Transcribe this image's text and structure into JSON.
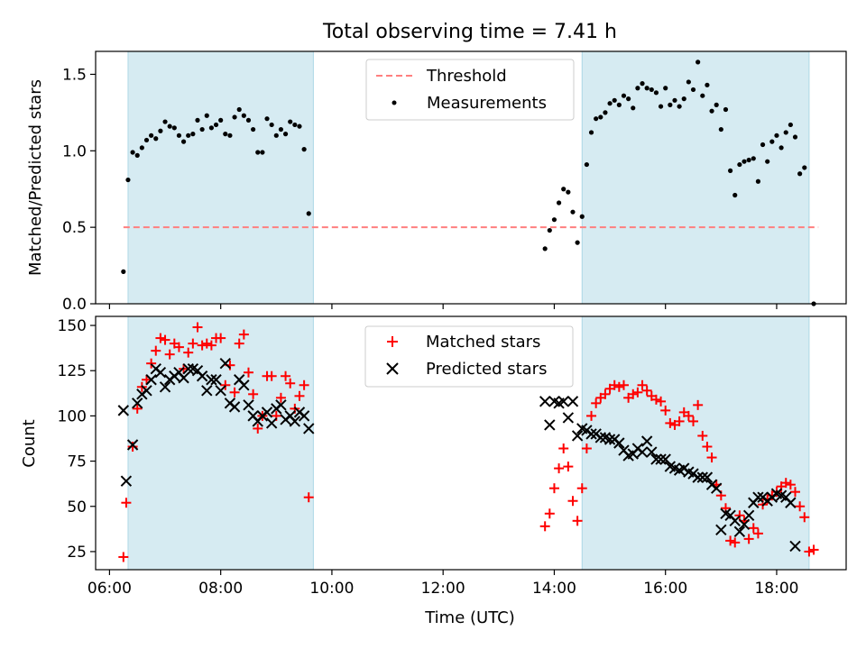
{
  "title": "Total observing time = 7.41 h",
  "colors": {
    "shade": "#add8e6",
    "threshold": "#ff7f7f",
    "measurements": "#000000",
    "matched": "#ff0000",
    "predicted": "#000000"
  },
  "chart_data": [
    {
      "type": "scatter",
      "panel": "top",
      "title": "Total observing time = 7.41 h",
      "ylabel": "Matched/Predicted stars",
      "xlabel": "",
      "xlim": [
        "05:45",
        "19:15"
      ],
      "ylim": [
        0,
        1.65
      ],
      "yticks": [
        0.0,
        0.5,
        1.0,
        1.5
      ],
      "yticklabels": [
        "0.0",
        "0.5",
        "1.0",
        "1.5"
      ],
      "shaded_intervals": [
        [
          "06:20",
          "09:40"
        ],
        [
          "14:30",
          "18:35"
        ]
      ],
      "threshold": {
        "value": 0.5,
        "x_range": [
          "06:15",
          "18:45"
        ],
        "label": "Threshold"
      },
      "legend": {
        "position": "upper center",
        "entries": [
          "Threshold",
          "Measurements"
        ]
      },
      "series": [
        {
          "name": "Measurements",
          "x": [
            "06:15",
            "06:20",
            "06:25",
            "06:30",
            "06:35",
            "06:40",
            "06:45",
            "06:50",
            "06:55",
            "07:00",
            "07:05",
            "07:10",
            "07:15",
            "07:20",
            "07:25",
            "07:30",
            "07:35",
            "07:40",
            "07:45",
            "07:50",
            "07:55",
            "08:00",
            "08:05",
            "08:10",
            "08:15",
            "08:20",
            "08:25",
            "08:30",
            "08:35",
            "08:40",
            "08:45",
            "08:50",
            "08:55",
            "09:00",
            "09:05",
            "09:10",
            "09:15",
            "09:20",
            "09:25",
            "09:30",
            "09:35",
            "09:40",
            "13:50",
            "13:55",
            "14:00",
            "14:05",
            "14:10",
            "14:15",
            "14:20",
            "14:25",
            "14:30",
            "14:35",
            "14:40",
            "14:45",
            "14:50",
            "14:55",
            "15:00",
            "15:05",
            "15:10",
            "15:15",
            "15:20",
            "15:25",
            "15:30",
            "15:35",
            "15:40",
            "15:45",
            "15:50",
            "15:55",
            "16:00",
            "16:05",
            "16:10",
            "16:15",
            "16:20",
            "16:25",
            "16:30",
            "16:35",
            "16:40",
            "16:45",
            "16:50",
            "16:55",
            "17:00",
            "17:05",
            "17:10",
            "17:15",
            "17:20",
            "17:25",
            "17:30",
            "17:35",
            "17:40",
            "17:45",
            "17:50",
            "17:55",
            "18:00",
            "18:05",
            "18:10",
            "18:15",
            "18:20",
            "18:25",
            "18:30",
            "18:35",
            "18:40"
          ],
          "y": [
            0.21,
            0.81,
            0.99,
            0.97,
            1.02,
            1.07,
            1.1,
            1.08,
            1.13,
            1.19,
            1.16,
            1.15,
            1.1,
            1.06,
            1.1,
            1.11,
            1.2,
            1.14,
            1.23,
            1.15,
            1.17,
            1.2,
            1.11,
            1.1,
            1.22,
            1.27,
            1.23,
            1.2,
            1.14,
            0.99,
            0.99,
            1.21,
            1.17,
            1.1,
            1.14,
            1.11,
            1.19,
            1.17,
            1.16,
            1.01,
            0.59,
            null,
            0.36,
            0.48,
            0.55,
            0.66,
            0.75,
            0.73,
            0.6,
            0.4,
            0.57,
            0.91,
            1.12,
            1.21,
            1.22,
            1.25,
            1.31,
            1.33,
            1.3,
            1.36,
            1.34,
            1.28,
            1.41,
            1.44,
            1.41,
            1.4,
            1.38,
            1.29,
            1.41,
            1.3,
            1.33,
            1.29,
            1.34,
            1.45,
            1.4,
            1.58,
            1.36,
            1.43,
            1.26,
            1.3,
            1.14,
            1.27,
            0.87,
            0.71,
            0.91,
            0.93,
            0.94,
            0.95,
            0.8,
            1.04,
            0.93,
            1.06,
            1.1,
            1.02,
            1.12,
            1.17,
            1.09,
            0.85,
            0.89,
            null,
            0.0
          ]
        }
      ]
    },
    {
      "type": "scatter",
      "panel": "bottom",
      "ylabel": "Count",
      "xlabel": "Time (UTC)",
      "xlim": [
        "05:45",
        "19:15"
      ],
      "xticks": [
        "06:00",
        "08:00",
        "10:00",
        "12:00",
        "14:00",
        "16:00",
        "18:00"
      ],
      "ylim": [
        15,
        155
      ],
      "yticks": [
        25,
        50,
        75,
        100,
        125,
        150
      ],
      "shaded_intervals": [
        [
          "06:20",
          "09:40"
        ],
        [
          "14:30",
          "18:35"
        ]
      ],
      "legend": {
        "position": "upper center",
        "entries": [
          "Matched stars",
          "Predicted stars"
        ]
      },
      "series": [
        {
          "name": "Matched stars",
          "marker": "+",
          "x": [
            "06:15",
            "06:18",
            "06:25",
            "06:30",
            "06:35",
            "06:40",
            "06:45",
            "06:50",
            "06:55",
            "07:00",
            "07:05",
            "07:10",
            "07:15",
            "07:20",
            "07:25",
            "07:30",
            "07:35",
            "07:40",
            "07:45",
            "07:50",
            "07:55",
            "08:00",
            "08:05",
            "08:10",
            "08:15",
            "08:20",
            "08:25",
            "08:30",
            "08:35",
            "08:40",
            "08:45",
            "08:50",
            "08:55",
            "09:00",
            "09:05",
            "09:10",
            "09:15",
            "09:20",
            "09:25",
            "09:30",
            "09:35",
            "09:40",
            "13:50",
            "13:55",
            "14:00",
            "14:05",
            "14:10",
            "14:15",
            "14:20",
            "14:25",
            "14:30",
            "14:35",
            "14:40",
            "14:45",
            "14:50",
            "14:55",
            "15:00",
            "15:05",
            "15:10",
            "15:15",
            "15:20",
            "15:25",
            "15:30",
            "15:35",
            "15:40",
            "15:45",
            "15:50",
            "15:55",
            "16:00",
            "16:05",
            "16:10",
            "16:15",
            "16:20",
            "16:25",
            "16:30",
            "16:35",
            "16:40",
            "16:45",
            "16:50",
            "16:55",
            "17:00",
            "17:05",
            "17:10",
            "17:15",
            "17:20",
            "17:25",
            "17:30",
            "17:35",
            "17:40",
            "17:45",
            "17:50",
            "17:55",
            "18:00",
            "18:05",
            "18:10",
            "18:15",
            "18:20",
            "18:25",
            "18:30",
            "18:35",
            "18:40"
          ],
          "y": [
            22,
            52,
            83,
            104,
            116,
            120,
            129,
            136,
            143,
            142,
            134,
            140,
            138,
            126,
            135,
            140,
            149,
            139,
            140,
            139,
            143,
            143,
            117,
            128,
            113,
            140,
            145,
            124,
            112,
            93,
            100,
            122,
            122,
            100,
            110,
            122,
            118,
            104,
            111,
            117,
            55,
            null,
            39,
            46,
            60,
            71,
            82,
            72,
            53,
            42,
            60,
            82,
            100,
            107,
            110,
            112,
            115,
            117,
            116,
            117,
            110,
            112,
            113,
            117,
            114,
            111,
            109,
            108,
            103,
            96,
            95,
            97,
            102,
            100,
            97,
            106,
            89,
            83,
            77,
            62,
            56,
            49,
            31,
            30,
            45,
            42,
            32,
            38,
            35,
            51,
            54,
            56,
            58,
            61,
            63,
            62,
            58,
            50,
            44,
            25,
            26
          ]
        },
        {
          "name": "Predicted stars",
          "marker": "x",
          "x": [
            "06:15",
            "06:18",
            "06:25",
            "06:30",
            "06:35",
            "06:40",
            "06:45",
            "06:50",
            "06:55",
            "07:00",
            "07:05",
            "07:10",
            "07:15",
            "07:20",
            "07:25",
            "07:30",
            "07:35",
            "07:40",
            "07:45",
            "07:50",
            "07:55",
            "08:00",
            "08:05",
            "08:10",
            "08:15",
            "08:20",
            "08:25",
            "08:30",
            "08:35",
            "08:40",
            "08:45",
            "08:50",
            "08:55",
            "09:00",
            "09:05",
            "09:10",
            "09:15",
            "09:20",
            "09:25",
            "09:30",
            "09:35",
            "09:40",
            "13:50",
            "13:55",
            "14:00",
            "14:05",
            "14:10",
            "14:15",
            "14:20",
            "14:25",
            "14:30",
            "14:35",
            "14:40",
            "14:45",
            "14:50",
            "14:55",
            "15:00",
            "15:05",
            "15:10",
            "15:15",
            "15:20",
            "15:25",
            "15:30",
            "15:35",
            "15:40",
            "15:45",
            "15:50",
            "15:55",
            "16:00",
            "16:05",
            "16:10",
            "16:15",
            "16:20",
            "16:25",
            "16:30",
            "16:35",
            "16:40",
            "16:45",
            "16:50",
            "16:55",
            "17:00",
            "17:05",
            "17:10",
            "17:15",
            "17:20",
            "17:25",
            "17:30",
            "17:35",
            "17:40",
            "17:45",
            "17:50",
            "17:55",
            "18:00",
            "18:05",
            "18:10",
            "18:15",
            "18:20",
            "18:25",
            "18:30",
            "18:35",
            "18:40"
          ],
          "y": [
            103,
            64,
            84,
            107,
            112,
            114,
            120,
            126,
            124,
            116,
            120,
            122,
            124,
            121,
            126,
            126,
            125,
            122,
            114,
            120,
            120,
            114,
            129,
            107,
            105,
            120,
            117,
            106,
            100,
            97,
            100,
            102,
            96,
            104,
            106,
            98,
            100,
            97,
            102,
            100,
            93,
            null,
            108,
            95,
            108,
            107,
            108,
            99,
            108,
            89,
            93,
            92,
            90,
            90,
            88,
            88,
            87,
            87,
            85,
            81,
            78,
            79,
            82,
            80,
            86,
            80,
            76,
            76,
            76,
            72,
            71,
            70,
            71,
            69,
            68,
            66,
            66,
            66,
            62,
            60,
            37,
            46,
            45,
            42,
            36,
            40,
            45,
            52,
            55,
            55,
            53,
            55,
            57,
            56,
            55,
            52,
            28,
            null,
            null,
            null,
            null
          ]
        }
      ]
    }
  ]
}
